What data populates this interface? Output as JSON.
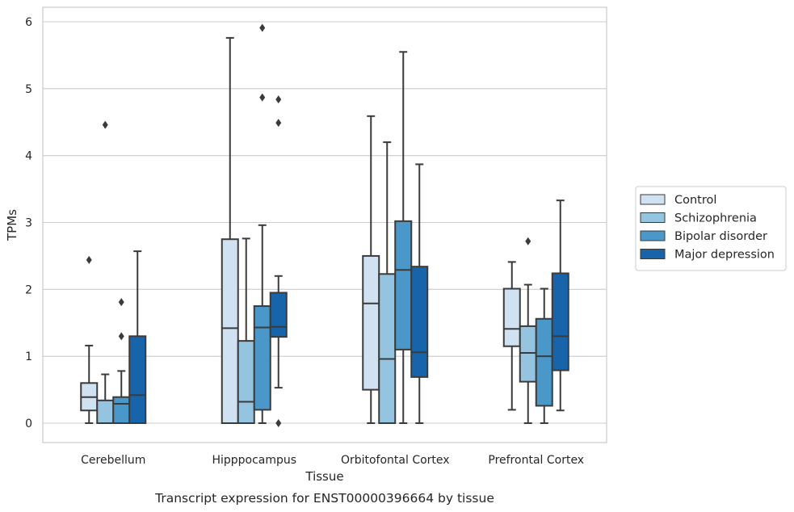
{
  "chart_data": {
    "type": "box",
    "title": "",
    "caption": "Transcript expression for ENST00000396664 by tissue",
    "xlabel": "Tissue",
    "ylabel": "TPMs",
    "ylim": [
      -0.3,
      6.2
    ],
    "yticks": [
      0,
      1,
      2,
      3,
      4,
      5,
      6
    ],
    "grid": "horizontal",
    "legend_position": "right",
    "categories": [
      "Cerebellum",
      "Hipppocampus",
      "Orbitofontal Cortex",
      "Prefrontal Cortex"
    ],
    "series": [
      {
        "name": "Control",
        "color": "#d0e1f2",
        "boxes": [
          {
            "whislo": 0.0,
            "q1": 0.19,
            "med": 0.39,
            "q3": 0.6,
            "whishi": 1.16,
            "fliers": [
              2.44
            ]
          },
          {
            "whislo": 0.0,
            "q1": 0.0,
            "med": 1.42,
            "q3": 2.75,
            "whishi": 5.76,
            "fliers": []
          },
          {
            "whislo": 0.0,
            "q1": 0.5,
            "med": 1.79,
            "q3": 2.5,
            "whishi": 4.59,
            "fliers": []
          },
          {
            "whislo": 0.2,
            "q1": 1.15,
            "med": 1.41,
            "q3": 2.01,
            "whishi": 2.41,
            "fliers": []
          }
        ]
      },
      {
        "name": "Schizophrenia",
        "color": "#94c4df",
        "boxes": [
          {
            "whislo": 0.0,
            "q1": 0.0,
            "med": 0.0,
            "q3": 0.34,
            "whishi": 0.73,
            "fliers": [
              4.46
            ]
          },
          {
            "whislo": 0.0,
            "q1": 0.0,
            "med": 0.32,
            "q3": 1.23,
            "whishi": 2.76,
            "fliers": []
          },
          {
            "whislo": 0.0,
            "q1": 0.0,
            "med": 0.96,
            "q3": 2.23,
            "whishi": 4.2,
            "fliers": []
          },
          {
            "whislo": 0.0,
            "q1": 0.62,
            "med": 1.05,
            "q3": 1.45,
            "whishi": 2.07,
            "fliers": [
              2.72
            ]
          }
        ]
      },
      {
        "name": "Bipolar disorder",
        "color": "#4a98c9",
        "boxes": [
          {
            "whislo": 0.0,
            "q1": 0.0,
            "med": 0.29,
            "q3": 0.39,
            "whishi": 0.78,
            "fliers": [
              1.3,
              1.81
            ]
          },
          {
            "whislo": 0.0,
            "q1": 0.2,
            "med": 1.43,
            "q3": 1.75,
            "whishi": 2.96,
            "fliers": [
              4.87,
              5.91
            ]
          },
          {
            "whislo": 0.0,
            "q1": 1.1,
            "med": 2.29,
            "q3": 3.02,
            "whishi": 5.55,
            "fliers": []
          },
          {
            "whislo": 0.0,
            "q1": 0.26,
            "med": 1.0,
            "q3": 1.56,
            "whishi": 2.01,
            "fliers": []
          }
        ]
      },
      {
        "name": "Major depression",
        "color": "#1764ab",
        "boxes": [
          {
            "whislo": 0.0,
            "q1": 0.0,
            "med": 0.42,
            "q3": 1.3,
            "whishi": 2.57,
            "fliers": []
          },
          {
            "whislo": 0.53,
            "q1": 1.29,
            "med": 1.44,
            "q3": 1.95,
            "whishi": 2.2,
            "fliers": [
              0.0,
              4.49,
              4.84
            ]
          },
          {
            "whislo": 0.0,
            "q1": 0.69,
            "med": 1.06,
            "q3": 2.34,
            "whishi": 3.87,
            "fliers": []
          },
          {
            "whislo": 0.19,
            "q1": 0.79,
            "med": 1.3,
            "q3": 2.24,
            "whishi": 3.33,
            "fliers": []
          }
        ]
      }
    ]
  }
}
